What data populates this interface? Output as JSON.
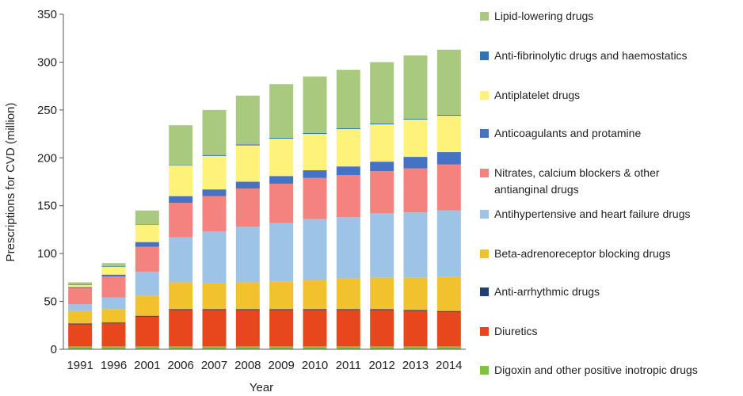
{
  "chart_data": {
    "type": "stacked_bar",
    "y_label": "Prescriptions for CVD (million)",
    "x_label": "Year",
    "categories": [
      "1991",
      "1996",
      "2001",
      "2006",
      "2007",
      "2008",
      "2009",
      "2010",
      "2011",
      "2012",
      "2013",
      "2014"
    ],
    "ylim": [
      0,
      350
    ],
    "yticks": [
      0,
      50,
      100,
      150,
      200,
      250,
      300,
      350
    ],
    "grid": false,
    "legend": "right",
    "series": [
      {
        "name": "Digoxin and other positive inotropic drugs",
        "color": "#7dc242",
        "values": [
          3,
          3,
          3,
          3,
          3,
          3,
          3,
          3,
          3,
          3,
          3,
          3
        ]
      },
      {
        "name": "Diuretics",
        "color": "#e8461c",
        "values": [
          23,
          24,
          31,
          38,
          38,
          38,
          38,
          38,
          38,
          38,
          37,
          36
        ]
      },
      {
        "name": "Anti-arrhythmic drugs",
        "color": "#1f3f7a",
        "values": [
          1,
          1,
          1,
          1,
          1,
          1,
          1,
          1,
          1,
          1,
          1,
          1
        ]
      },
      {
        "name": "Beta-adrenoreceptor blocking drugs",
        "color": "#f2c12e",
        "values": [
          13,
          14,
          21,
          28,
          27,
          28,
          29,
          30,
          32,
          33,
          34,
          36
        ]
      },
      {
        "name": "Antihypertensive and heart failure drugs",
        "color": "#9dc3e6",
        "values": [
          7,
          12,
          25,
          47,
          54,
          58,
          61,
          64,
          64,
          67,
          68,
          69
        ]
      },
      {
        "name": "Nitrates, calcium blockers & other antianginal drugs",
        "color": "#f4827f",
        "values": [
          17,
          22,
          26,
          36,
          37,
          40,
          41,
          43,
          44,
          44,
          46,
          48
        ]
      },
      {
        "name": "Anticoagulants and protamine",
        "color": "#4472c4",
        "values": [
          1,
          2,
          5,
          7,
          7,
          7,
          8,
          8,
          9,
          10,
          12,
          13
        ]
      },
      {
        "name": "Antiplatelet drugs",
        "color": "#fff27a",
        "values": [
          2,
          8,
          18,
          32,
          35,
          38,
          39,
          38,
          39,
          39,
          39,
          38
        ]
      },
      {
        "name": "Anti-fibrinolytic drugs and haemostatics",
        "color": "#2e75b6",
        "values": [
          0.5,
          0.5,
          0.5,
          0.5,
          1,
          1,
          1,
          1,
          1,
          1,
          1,
          1
        ]
      },
      {
        "name": "Lipid-lowering drugs",
        "color": "#a9c97f",
        "values": [
          2.5,
          3.5,
          14.5,
          41.5,
          47,
          51,
          56,
          59,
          61,
          64,
          66,
          68
        ]
      }
    ]
  }
}
